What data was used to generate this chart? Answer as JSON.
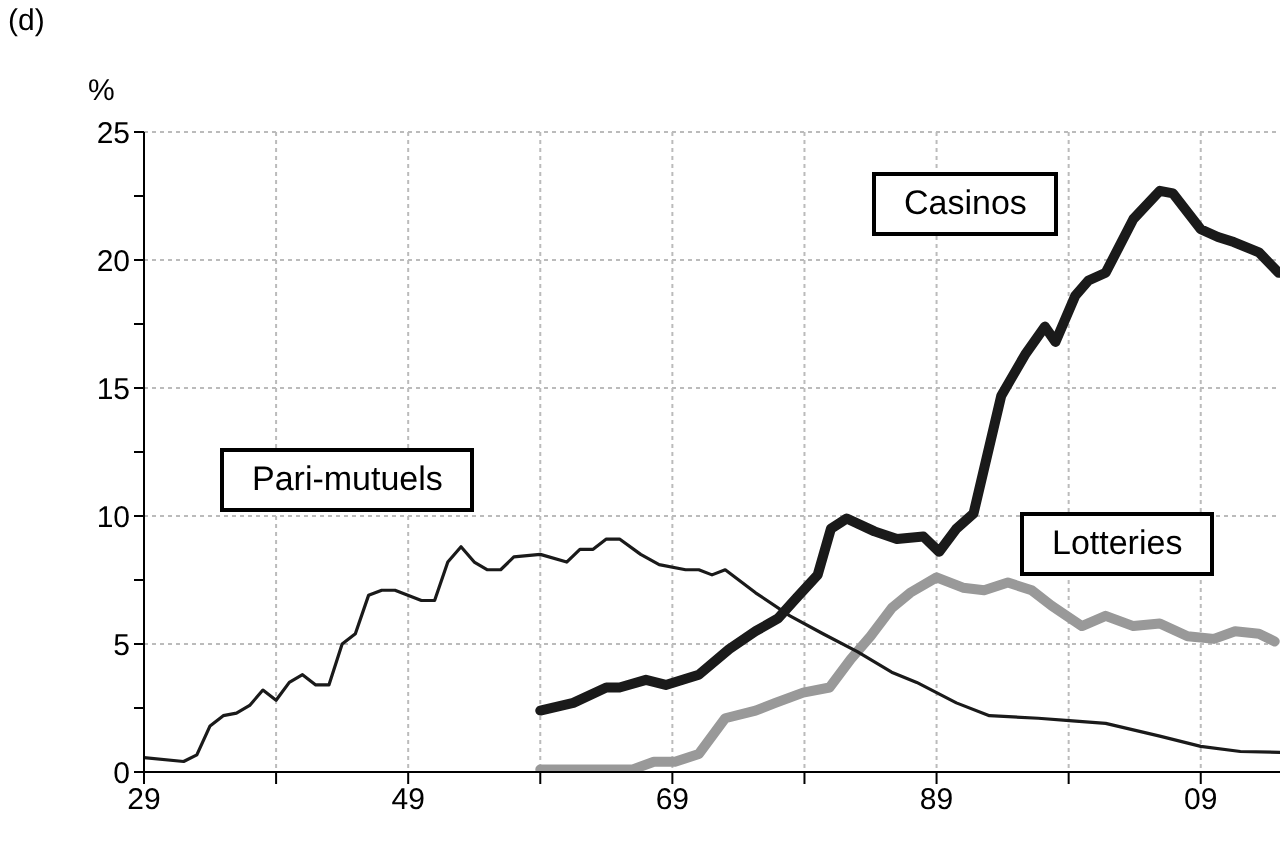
{
  "chart_data": {
    "type": "line",
    "title": "(d)",
    "ylabel": "%",
    "grid": true,
    "legend": false,
    "marker": "none",
    "line_style": "solid",
    "xlim": [
      1929,
      2015
    ],
    "xticks": [
      {
        "value": 1929,
        "label": "29"
      },
      {
        "value": 1939,
        "label": null
      },
      {
        "value": 1949,
        "label": "49"
      },
      {
        "value": 1959,
        "label": null
      },
      {
        "value": 1969,
        "label": "69"
      },
      {
        "value": 1979,
        "label": null
      },
      {
        "value": 1989,
        "label": "89"
      },
      {
        "value": 1999,
        "label": null
      },
      {
        "value": 2009,
        "label": "09"
      }
    ],
    "ylim": [
      0,
      25
    ],
    "yticks": [
      0,
      {
        "value": 2.5,
        "label": null
      },
      5,
      {
        "value": 7.5,
        "label": null
      },
      10,
      {
        "value": 12.5,
        "label": null
      },
      15,
      {
        "value": 17.5,
        "label": null
      },
      20,
      {
        "value": 22.5,
        "label": null
      },
      25
    ],
    "series": [
      {
        "name": "Casinos",
        "color": "#1a1a1a",
        "x": [
          1959,
          1961.5,
          1964,
          1965,
          1967,
          1968.5,
          1971,
          1973.3,
          1975.3,
          1977,
          1978.4,
          1980,
          1981,
          1982.2,
          1984.3,
          1986,
          1988,
          1989.2,
          1990.5,
          1991.8,
          1993.9,
          1995.7,
          1997.2,
          1998,
          1999.5,
          2000.5,
          2001.8,
          2003.9,
          2005.9,
          2006.9,
          2009,
          2010.3,
          2011.5,
          2013.4,
          2014.9
        ],
        "values": [
          2.4,
          2.7,
          3.3,
          3.3,
          3.6,
          3.4,
          3.8,
          4.8,
          5.5,
          6.0,
          6.8,
          7.7,
          9.5,
          9.9,
          9.4,
          9.1,
          9.2,
          8.6,
          9.5,
          10.1,
          14.7,
          16.3,
          17.4,
          16.8,
          18.6,
          19.2,
          19.5,
          21.6,
          22.7,
          22.6,
          21.2,
          20.9,
          20.7,
          20.3,
          19.5
        ]
      },
      {
        "name": "Lotteries",
        "color": "#999999",
        "x": [
          1959,
          1966,
          1967.6,
          1969.2,
          1971,
          1973,
          1975.3,
          1976.8,
          1978.9,
          1980.9,
          1982.5,
          1984,
          1985.6,
          1987,
          1989,
          1991,
          1992.6,
          1994.4,
          1996.2,
          1997.7,
          2000,
          2001.8,
          2003.9,
          2005.9,
          2008,
          2010,
          2011.6,
          2013.4,
          2014.6
        ],
        "values": [
          0.1,
          0.1,
          0.4,
          0.4,
          0.7,
          2.1,
          2.4,
          2.7,
          3.1,
          3.3,
          4.4,
          5.3,
          6.4,
          7.0,
          7.6,
          7.2,
          7.1,
          7.4,
          7.1,
          6.5,
          5.7,
          6.1,
          5.7,
          5.8,
          5.3,
          5.2,
          5.5,
          5.4,
          5.1
        ]
      },
      {
        "name": "Pari-mutuels",
        "color": "#1a1a1a",
        "x": [
          1929,
          1932,
          1933,
          1934,
          1935,
          1936,
          1937,
          1938,
          1939,
          1940,
          1941,
          1942,
          1943,
          1944,
          1945,
          1946,
          1947,
          1948,
          1950,
          1951,
          1952,
          1953,
          1954,
          1955,
          1956,
          1957,
          1959,
          1961,
          1962,
          1963,
          1964,
          1965,
          1966.6,
          1968,
          1970,
          1971,
          1972,
          1973,
          1975.3,
          1977.9,
          1980.4,
          1983,
          1985.6,
          1987.5,
          1989,
          1990.5,
          1993,
          1996.7,
          1999.3,
          2001.8,
          2005.9,
          2009,
          2012,
          2015
        ],
        "values": [
          0.56,
          0.41,
          0.67,
          1.8,
          2.2,
          2.3,
          2.6,
          3.2,
          2.8,
          3.5,
          3.8,
          3.4,
          3.4,
          5.0,
          5.4,
          6.9,
          7.1,
          7.1,
          6.7,
          6.7,
          8.2,
          8.8,
          8.2,
          7.9,
          7.9,
          8.4,
          8.5,
          8.2,
          8.7,
          8.7,
          9.1,
          9.1,
          8.5,
          8.1,
          7.9,
          7.9,
          7.7,
          7.9,
          7.0,
          6.1,
          5.4,
          4.7,
          3.9,
          3.5,
          3.1,
          2.7,
          2.2,
          2.1,
          2.0,
          1.9,
          1.4,
          1.0,
          0.8,
          0.77
        ]
      }
    ]
  }
}
